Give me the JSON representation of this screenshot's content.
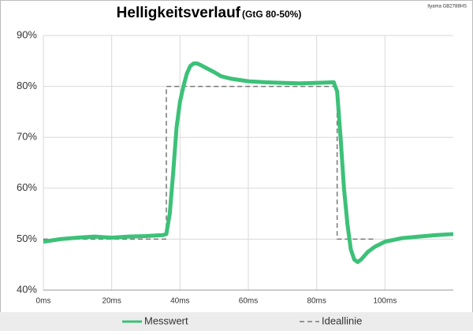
{
  "chart_data": {
    "type": "line",
    "title": "Helligkeitsverlauf",
    "subtitle": "(GtG 80-50%)",
    "annotation": "Iiyama GB2788HS",
    "xlim": [
      0,
      120
    ],
    "xticks": [
      {
        "value": 0,
        "label": "0ms"
      },
      {
        "value": 20,
        "label": "20ms"
      },
      {
        "value": 40,
        "label": "40ms"
      },
      {
        "value": 60,
        "label": "60ms"
      },
      {
        "value": 80,
        "label": "80ms"
      },
      {
        "value": 100,
        "label": "100ms"
      }
    ],
    "ylim": [
      40,
      90
    ],
    "yticks": [
      {
        "value": 40,
        "label": "40%"
      },
      {
        "value": 50,
        "label": "50%"
      },
      {
        "value": 60,
        "label": "60%"
      },
      {
        "value": 70,
        "label": "70%"
      },
      {
        "value": 80,
        "label": "80%"
      },
      {
        "value": 90,
        "label": "90%"
      }
    ],
    "grid": true,
    "legend": "bottom",
    "series": [
      {
        "name": "Messwert",
        "color": "#3cc178",
        "dash": false,
        "x": [
          0,
          5,
          10,
          15,
          20,
          25,
          30,
          35,
          36,
          37,
          38,
          39,
          40,
          41,
          42,
          43,
          44,
          45,
          46,
          48,
          50,
          52,
          55,
          60,
          65,
          70,
          75,
          80,
          85,
          86,
          87,
          88,
          89,
          90,
          91,
          92,
          93,
          95,
          97,
          100,
          105,
          110,
          115,
          120
        ],
        "values": [
          49.5,
          50,
          50.3,
          50.5,
          50.3,
          50.5,
          50.6,
          50.8,
          51,
          55,
          63,
          72,
          77,
          80,
          82.5,
          84,
          84.5,
          84.5,
          84.2,
          83.5,
          82.8,
          82,
          81.5,
          81,
          80.8,
          80.7,
          80.6,
          80.7,
          80.8,
          79,
          70,
          60,
          53,
          48,
          46,
          45.5,
          46,
          47.5,
          48.5,
          49.5,
          50.2,
          50.5,
          50.8,
          51
        ]
      },
      {
        "name": "Ideallinie",
        "color": "#777777",
        "dash": true,
        "x": [
          0,
          36,
          36,
          86,
          86,
          97
        ],
        "values": [
          50,
          50,
          80,
          80,
          50,
          50
        ]
      }
    ]
  }
}
